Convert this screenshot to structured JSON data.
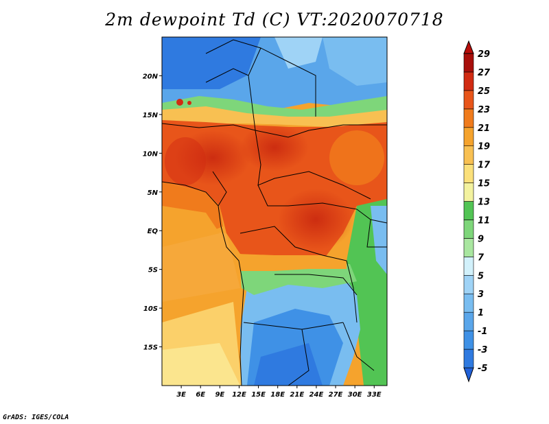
{
  "figure": {
    "title": "2m dewpoint Td (C) VT:2020070718",
    "credit": "GrADS: IGES/COLA"
  },
  "map": {
    "variable": "2m dewpoint",
    "units": "C",
    "valid_time": "2020070718",
    "lon_range": [
      0,
      35
    ],
    "lat_range": [
      -20,
      25
    ],
    "lon_ticks": [
      "3E",
      "6E",
      "9E",
      "12E",
      "15E",
      "18E",
      "21E",
      "24E",
      "27E",
      "30E",
      "33E"
    ],
    "lon_tick_values": [
      3,
      6,
      9,
      12,
      15,
      18,
      21,
      24,
      27,
      30,
      33
    ],
    "lat_ticks": [
      "20N",
      "15N",
      "10N",
      "5N",
      "EQ",
      "5S",
      "10S",
      "15S"
    ],
    "lat_tick_values": [
      20,
      15,
      10,
      5,
      0,
      -5,
      -10,
      -15
    ]
  },
  "colorbar": {
    "labels": [
      "29",
      "27",
      "25",
      "23",
      "21",
      "19",
      "17",
      "15",
      "13",
      "11",
      "9",
      "7",
      "5",
      "3",
      "1",
      "-1",
      "-3",
      "-5"
    ],
    "levels": [
      -5,
      -3,
      -1,
      1,
      3,
      5,
      7,
      9,
      11,
      13,
      15,
      17,
      19,
      21,
      23,
      25,
      27,
      29
    ],
    "colors": [
      "#2161d8",
      "#2f7ae0",
      "#3f91e6",
      "#5aa6ea",
      "#79bdf0",
      "#9fd3f6",
      "#d2f1fb",
      "#a9e6a0",
      "#7ed67a",
      "#52c454",
      "#f3f29f",
      "#fbe07a",
      "#f8c052",
      "#f5a32d",
      "#f07b1c",
      "#e8551a",
      "#d12b12",
      "#a80f0b",
      "#b80d0a"
    ]
  }
}
